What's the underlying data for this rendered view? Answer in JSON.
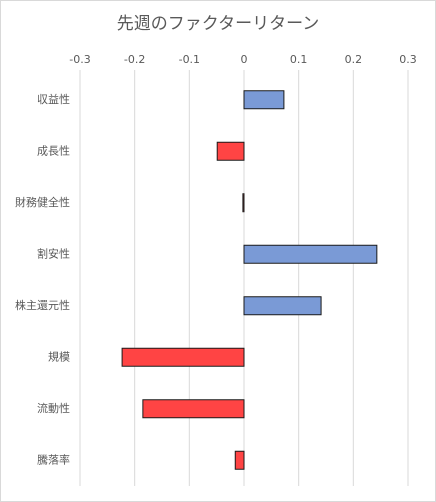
{
  "chart_data": {
    "type": "hbar",
    "title": "先週のファクターリターン",
    "categories": [
      "収益性",
      "成長性",
      "財務健全性",
      "割安性",
      "株主還元性",
      "規模",
      "流動性",
      "騰落率"
    ],
    "values": [
      0.073,
      -0.049,
      -0.002,
      0.243,
      0.141,
      -0.223,
      -0.185,
      -0.016
    ],
    "colors": [
      "#7a9ad6",
      "#ff4444",
      "#ff4444",
      "#7a9ad6",
      "#7a9ad6",
      "#ff4444",
      "#ff4444",
      "#ff4444"
    ],
    "xlim": [
      -0.3,
      0.3
    ],
    "xticks": [
      -0.3,
      -0.2,
      -0.1,
      0,
      0.1,
      0.2,
      0.3
    ],
    "grid": true
  }
}
